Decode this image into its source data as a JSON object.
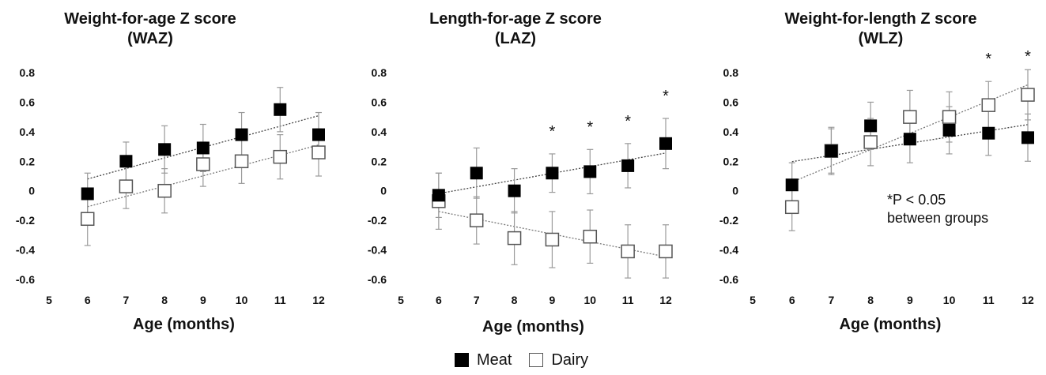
{
  "panels": [
    {
      "title_line1": "Weight-for-age Z score",
      "title_line2": "(WAZ)",
      "xlabel": "Age (months)",
      "significant_ages": [],
      "note": null
    },
    {
      "title_line1": "Length-for-age Z score",
      "title_line2": "(LAZ)",
      "xlabel": "Age (months)",
      "significant_ages": [
        9,
        10,
        11,
        12
      ],
      "note": null
    },
    {
      "title_line1": "Weight-for-length Z score",
      "title_line2": "(WLZ)",
      "xlabel": "Age (months)",
      "significant_ages": [
        11,
        12
      ],
      "note": {
        "line1": "*P < 0.05",
        "line2": "between groups"
      }
    }
  ],
  "legend": {
    "meat": "Meat",
    "dairy": "Dairy"
  },
  "colors": {
    "meat_fill": "#000000",
    "dairy_fill": "#ffffff",
    "dairy_stroke": "#555555",
    "errorbar": "#9a9a9a"
  },
  "chart_data": [
    {
      "type": "scatter",
      "title": "Weight-for-age Z score (WAZ)",
      "xlabel": "Age (months)",
      "ylabel": "",
      "x": [
        6,
        7,
        8,
        9,
        10,
        11,
        12
      ],
      "xlim": [
        5,
        12
      ],
      "ylim": [
        -0.6,
        0.8
      ],
      "xticks": [
        5,
        6,
        7,
        8,
        9,
        10,
        11,
        12
      ],
      "yticks": [
        -0.6,
        -0.4,
        -0.2,
        0,
        0.2,
        0.4,
        0.6,
        0.8
      ],
      "grid": false,
      "trendline": "linear",
      "series": [
        {
          "name": "Meat",
          "marker": "filled-square",
          "values": [
            -0.02,
            0.2,
            0.28,
            0.29,
            0.38,
            0.55,
            0.38
          ],
          "error": [
            0.14,
            0.13,
            0.16,
            0.16,
            0.15,
            0.15,
            0.15
          ]
        },
        {
          "name": "Dairy",
          "marker": "open-square",
          "values": [
            -0.19,
            0.03,
            0.0,
            0.18,
            0.2,
            0.23,
            0.26
          ],
          "error": [
            0.18,
            0.15,
            0.15,
            0.15,
            0.15,
            0.15,
            0.16
          ]
        }
      ]
    },
    {
      "type": "scatter",
      "title": "Length-for-age Z score (LAZ)",
      "xlabel": "Age (months)",
      "ylabel": "",
      "x": [
        6,
        7,
        8,
        9,
        10,
        11,
        12
      ],
      "xlim": [
        5,
        12
      ],
      "ylim": [
        -0.6,
        0.8
      ],
      "xticks": [
        5,
        6,
        7,
        8,
        9,
        10,
        11,
        12
      ],
      "yticks": [
        -0.6,
        -0.4,
        -0.2,
        0,
        0.2,
        0.4,
        0.6,
        0.8
      ],
      "grid": false,
      "trendline": "linear",
      "annotations": [
        "*",
        "*",
        "*",
        "*"
      ],
      "series": [
        {
          "name": "Meat",
          "marker": "filled-square",
          "values": [
            -0.03,
            0.12,
            0.0,
            0.12,
            0.13,
            0.17,
            0.32
          ],
          "error": [
            0.15,
            0.17,
            0.15,
            0.13,
            0.15,
            0.15,
            0.17
          ]
        },
        {
          "name": "Dairy",
          "marker": "open-square",
          "values": [
            -0.07,
            -0.2,
            -0.32,
            -0.33,
            -0.31,
            -0.41,
            -0.41
          ],
          "error": [
            0.19,
            0.16,
            0.18,
            0.19,
            0.18,
            0.18,
            0.18
          ]
        }
      ]
    },
    {
      "type": "scatter",
      "title": "Weight-for-length Z score (WLZ)",
      "xlabel": "Age (months)",
      "ylabel": "",
      "x": [
        6,
        7,
        8,
        9,
        10,
        11,
        12
      ],
      "xlim": [
        5,
        12
      ],
      "ylim": [
        -0.6,
        0.8
      ],
      "xticks": [
        5,
        6,
        7,
        8,
        9,
        10,
        11,
        12
      ],
      "yticks": [
        -0.6,
        -0.4,
        -0.2,
        0,
        0.2,
        0.4,
        0.6,
        0.8
      ],
      "grid": false,
      "trendline": "linear",
      "annotations": [
        "*",
        "*",
        "*P < 0.05 between groups"
      ],
      "series": [
        {
          "name": "Meat",
          "marker": "filled-square",
          "values": [
            0.04,
            0.27,
            0.44,
            0.35,
            0.41,
            0.39,
            0.36
          ],
          "error": [
            0.15,
            0.15,
            0.16,
            0.16,
            0.16,
            0.15,
            0.16
          ]
        },
        {
          "name": "Dairy",
          "marker": "open-square",
          "values": [
            -0.11,
            0.27,
            0.33,
            0.5,
            0.5,
            0.58,
            0.65
          ],
          "error": [
            0.16,
            0.16,
            0.16,
            0.18,
            0.17,
            0.16,
            0.17
          ]
        }
      ]
    }
  ]
}
